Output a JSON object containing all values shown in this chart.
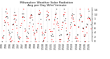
{
  "title": "Milwaukee Weather Solar Radiation",
  "subtitle": "Avg per Day W/m²/minute",
  "background_color": "#ffffff",
  "dot_color_primary": "#ff0000",
  "dot_color_secondary": "#000000",
  "ylim": [
    0.0,
    1.5
  ],
  "yticks": [
    0.0,
    0.2,
    0.4,
    0.6,
    0.8,
    1.0,
    1.2,
    1.4
  ],
  "ytick_labels": [
    "0",
    ".2",
    ".4",
    ".6",
    ".8",
    "1.",
    "1.2",
    "1.4"
  ],
  "n_points": 130,
  "grid_color": "#bbbbbb",
  "title_fontsize": 3.2,
  "tick_fontsize": 2.5,
  "dot_size_primary": 0.5,
  "dot_size_secondary": 0.4,
  "n_xticks": 22,
  "xtick_step": 6
}
